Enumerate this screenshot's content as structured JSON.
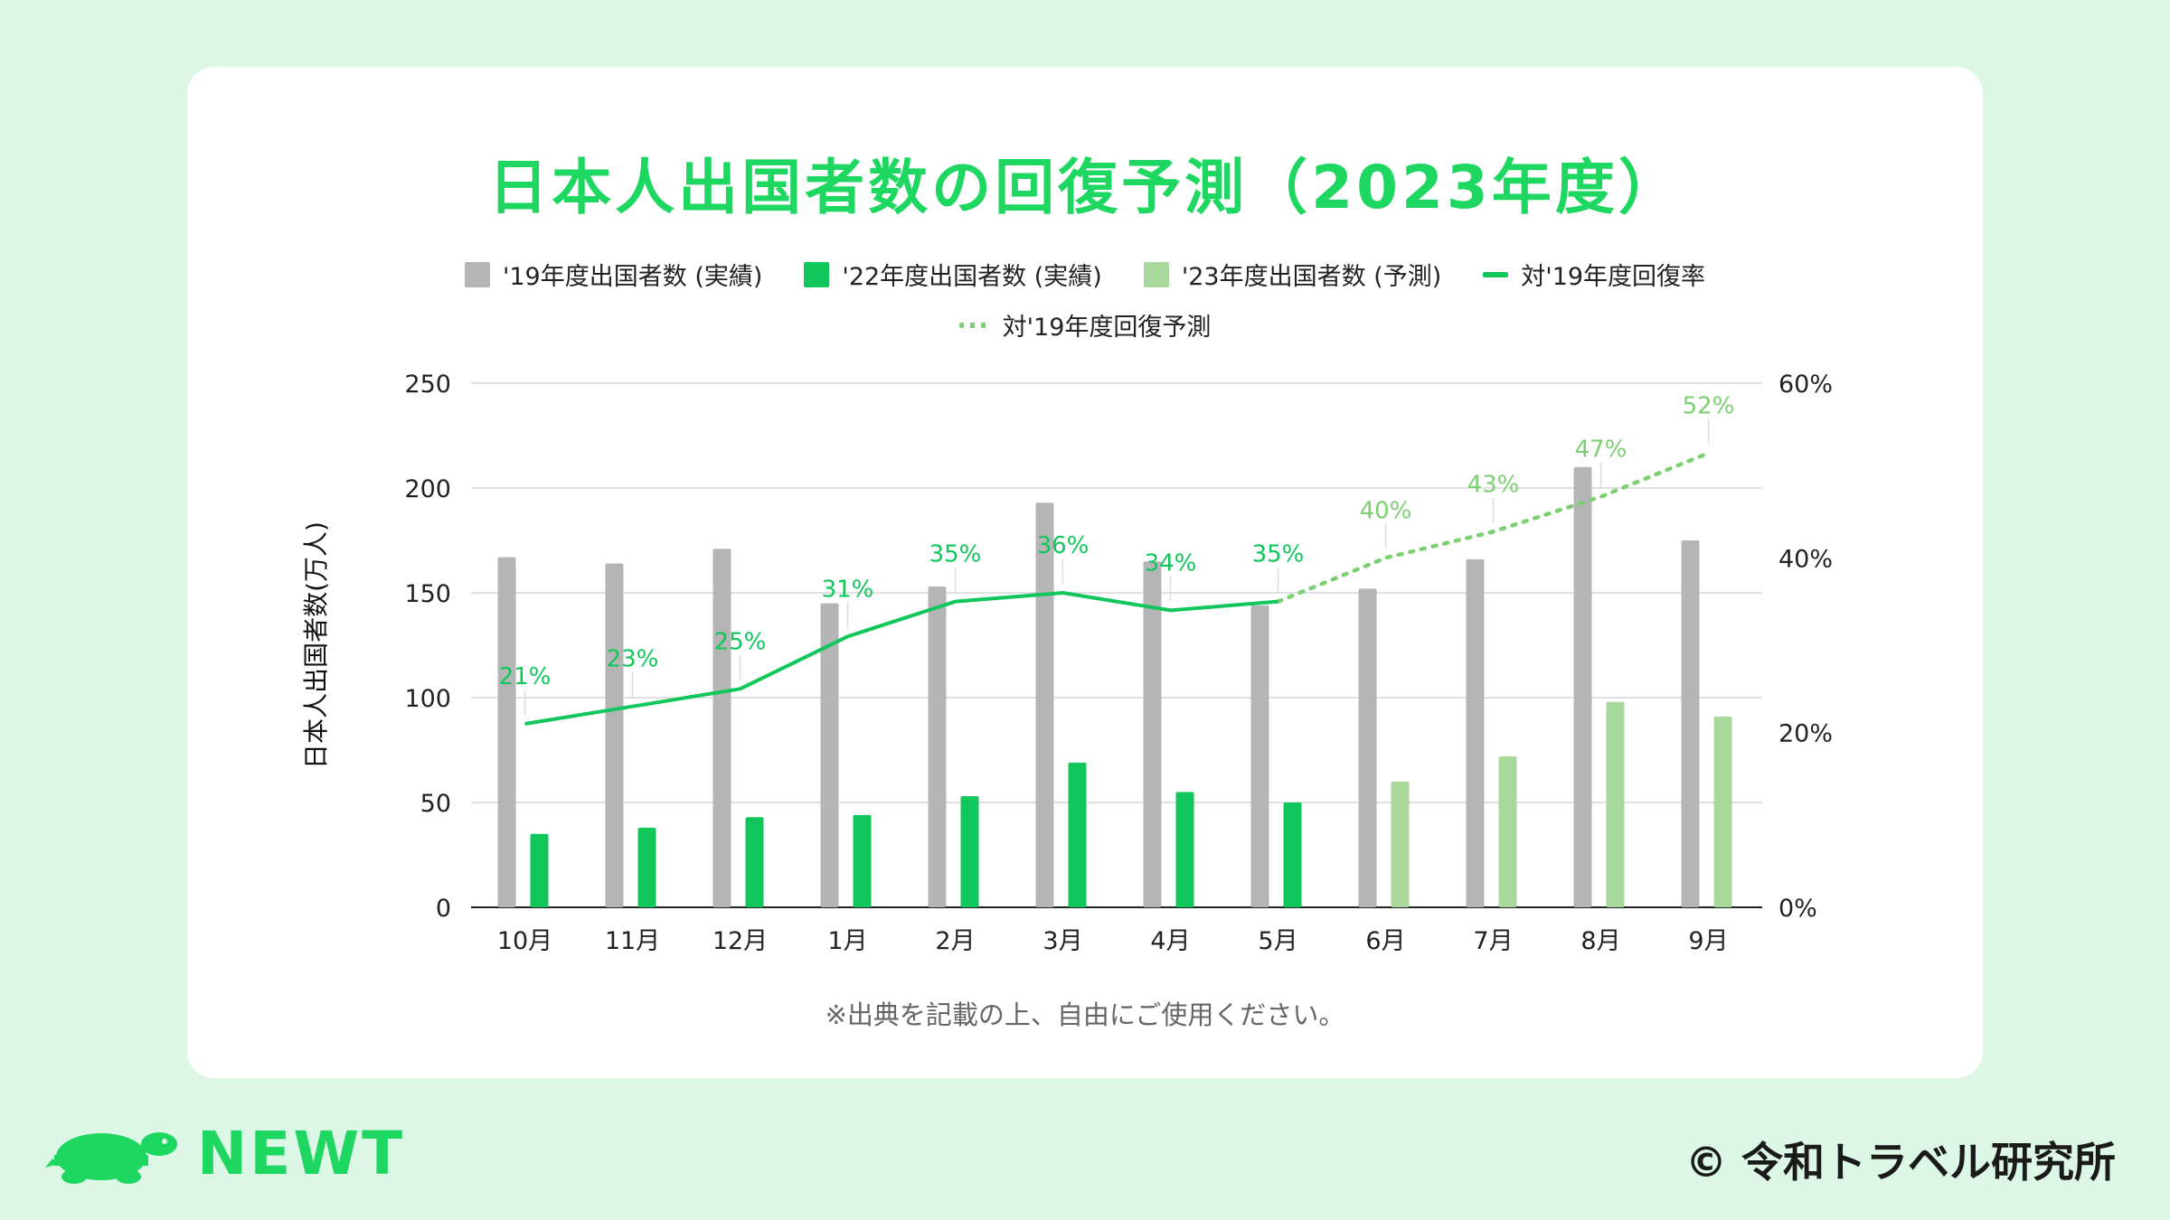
{
  "header": {
    "title": "日本人出国者数の回復予測（2023年度）"
  },
  "legend": {
    "row1": [
      {
        "label": "'19年度出国者数 (実績)",
        "color": "#b5b5b5",
        "kind": "box"
      },
      {
        "label": "'22年度出国者数 (実績)",
        "color": "#11c65a",
        "kind": "box"
      },
      {
        "label": "'23年度出国者数 (予測)",
        "color": "#a8d89c",
        "kind": "box"
      },
      {
        "label": "対'19年度回復率",
        "color": "#11c65a",
        "kind": "line"
      }
    ],
    "row2": [
      {
        "label": "対'19年度回復予測",
        "color": "#7ccf72",
        "kind": "dotted"
      }
    ]
  },
  "chart_data": {
    "type": "bar",
    "categories": [
      "10月",
      "11月",
      "12月",
      "1月",
      "2月",
      "3月",
      "4月",
      "5月",
      "6月",
      "7月",
      "8月",
      "9月"
    ],
    "ylabel": "日本人出国者数(万人)",
    "ylim": [
      0,
      250
    ],
    "yticks": [
      "0",
      "50",
      "100",
      "150",
      "200",
      "250"
    ],
    "y2lim": [
      0,
      60
    ],
    "y2ticks": [
      "0%",
      "20%",
      "40%",
      "60%"
    ],
    "grid": true,
    "legend_position": "top",
    "series": [
      {
        "name": "'19年度出国者数 (実績)",
        "type": "bar",
        "color": "#b5b5b5",
        "values": [
          167,
          164,
          171,
          145,
          153,
          193,
          165,
          144,
          152,
          166,
          210,
          175
        ]
      },
      {
        "name": "'22年度出国者数 (実績)",
        "type": "bar",
        "color": "#11c65a",
        "values": [
          35,
          38,
          43,
          44,
          53,
          69,
          55,
          50,
          null,
          null,
          null,
          null
        ]
      },
      {
        "name": "'23年度出国者数 (予測)",
        "type": "bar",
        "color": "#a8d89c",
        "values": [
          null,
          null,
          null,
          null,
          null,
          null,
          null,
          null,
          60,
          72,
          98,
          91
        ]
      },
      {
        "name": "対'19年度回復率",
        "type": "line",
        "axis": "right",
        "color": "#11c65a",
        "values": [
          21,
          23,
          25,
          31,
          35,
          36,
          34,
          35,
          null,
          null,
          null,
          null
        ],
        "labels": [
          "21%",
          "23%",
          "25%",
          "31%",
          "35%",
          "36%",
          "34%",
          "35%",
          "",
          "",
          "",
          ""
        ]
      },
      {
        "name": "対'19年度回復予測",
        "type": "line-dotted",
        "axis": "right",
        "color": "#7ccf72",
        "values": [
          null,
          null,
          null,
          null,
          null,
          null,
          null,
          35,
          40,
          43,
          47,
          52
        ],
        "labels": [
          "",
          "",
          "",
          "",
          "",
          "",
          "",
          "",
          "40%",
          "43%",
          "47%",
          "52%"
        ]
      }
    ]
  },
  "footer": {
    "note": "※出典を記載の上、自由にご使用ください。",
    "brand": "NEWT",
    "copyright": "© 令和トラベル研究所"
  },
  "colors": {
    "accent": "#1ed760",
    "background": "#dcf7e6"
  }
}
